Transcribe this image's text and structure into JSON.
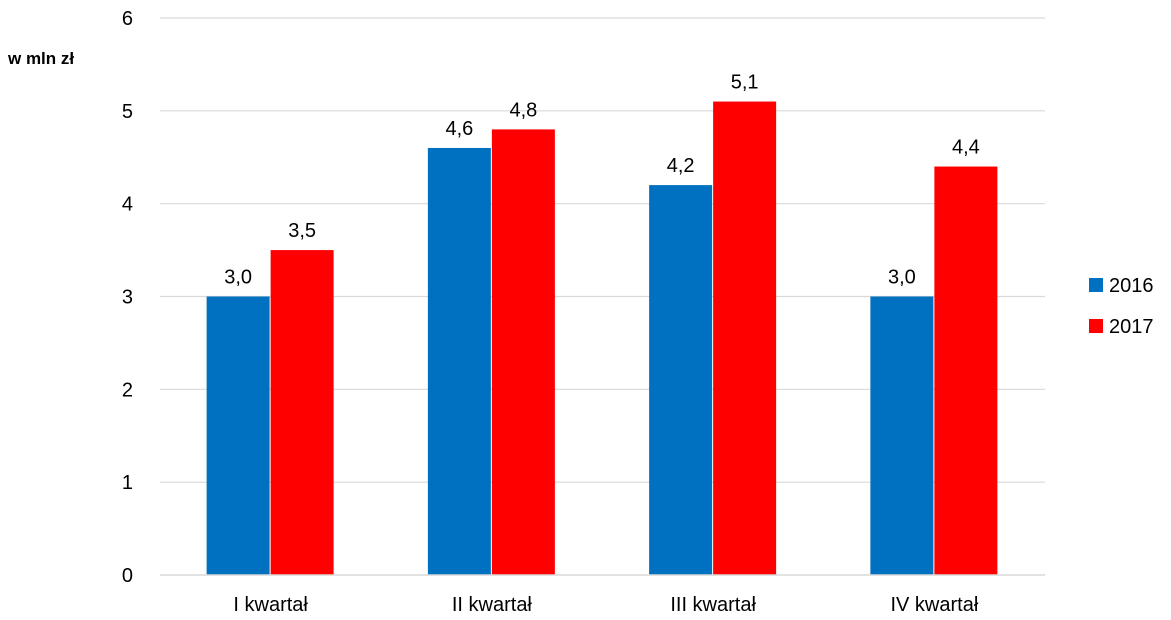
{
  "chart_data": {
    "type": "bar",
    "title": "",
    "unit_label": "w mln zł",
    "xlabel": "",
    "ylabel": "",
    "categories": [
      "I kwartał",
      "II kwartał",
      "III kwartał",
      "IV kwartał"
    ],
    "series": [
      {
        "name": "2016",
        "color": "#0070C0",
        "values": [
          3.0,
          4.6,
          4.2,
          3.0
        ],
        "labels": [
          "3,0",
          "4,6",
          "4,2",
          "3,0"
        ]
      },
      {
        "name": "2017",
        "color": "#FF0000",
        "values": [
          3.5,
          4.8,
          5.1,
          4.4
        ],
        "labels": [
          "3,5",
          "4,8",
          "5,1",
          "4,4"
        ]
      }
    ],
    "ylim": [
      0,
      6
    ],
    "yticks": [
      "0",
      "1",
      "2",
      "3",
      "4",
      "5",
      "6"
    ],
    "grid": true,
    "grid_color": "#D9D9D9",
    "legend_position": "right"
  }
}
